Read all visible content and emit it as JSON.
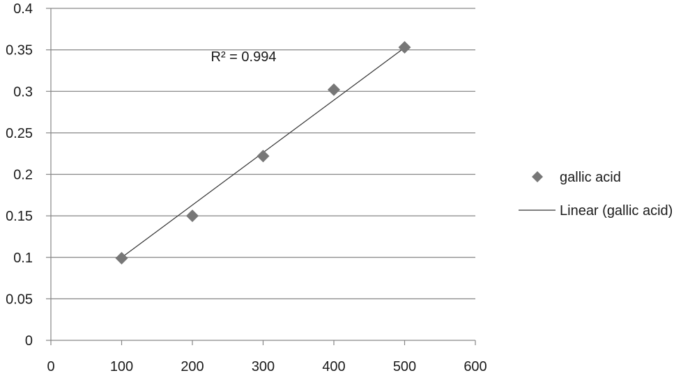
{
  "chart_data": {
    "type": "scatter",
    "x": [
      100,
      200,
      300,
      400,
      500
    ],
    "series": [
      {
        "name": "gallic acid",
        "values": [
          0.099,
          0.15,
          0.222,
          0.302,
          0.353
        ],
        "marker": "diamond",
        "color": "#777777"
      }
    ],
    "trendline": {
      "name": "Linear (gallic acid)",
      "type": "linear",
      "x_start": 100,
      "x_end": 500,
      "y_start": 0.0998,
      "y_end": 0.3526,
      "color": "#333333"
    },
    "annotations": [
      {
        "text": "R² = 0.994",
        "x": 300,
        "y": 0.342
      }
    ],
    "xlim": [
      0,
      600
    ],
    "ylim": [
      0,
      0.4
    ],
    "x_ticks": [
      0,
      100,
      200,
      300,
      400,
      500,
      600
    ],
    "x_tick_labels": [
      "0",
      "100",
      "200",
      "300",
      "400",
      "500",
      "600"
    ],
    "y_ticks": [
      0,
      0.05,
      0.1,
      0.15,
      0.2,
      0.25,
      0.3,
      0.35,
      0.4
    ],
    "y_tick_labels": [
      "0",
      "0.05",
      "0.1",
      "0.15",
      "0.2",
      "0.25",
      "0.3",
      "0.35",
      "0.4"
    ],
    "grid": "horizontal",
    "legend_position": "right",
    "title": "",
    "xlabel": "",
    "ylabel": ""
  }
}
